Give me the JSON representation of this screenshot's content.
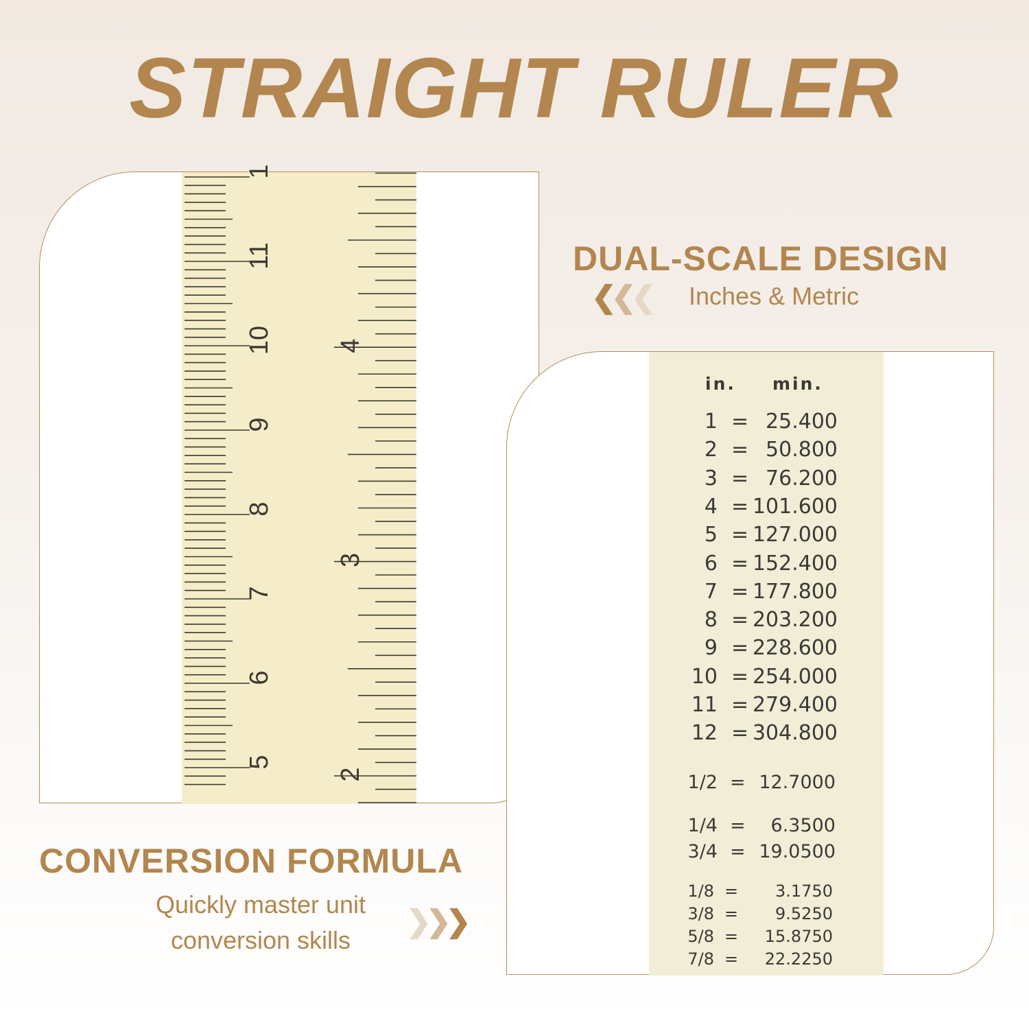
{
  "title": "STRAIGHT RULER",
  "dual_scale": {
    "heading": "DUAL-SCALE DESIGN",
    "subheading": "Inches & Metric",
    "arrow_icon": "chevrons-left-icon"
  },
  "conversion": {
    "heading": "CONVERSION FORMULA",
    "line1": "Quickly master unit",
    "line2": "conversion skills",
    "arrow_icon": "chevrons-right-icon"
  },
  "ruler": {
    "cm_labels": [
      "5",
      "6",
      "7",
      "8",
      "9",
      "10",
      "11",
      "1"
    ],
    "inch_labels": [
      "2",
      "3",
      "4"
    ]
  },
  "table": {
    "col_in": "in.",
    "col_mm": "min.",
    "rows": [
      {
        "in": "1",
        "eq": "=",
        "mm": "25.400"
      },
      {
        "in": "2",
        "eq": "=",
        "mm": "50.800"
      },
      {
        "in": "3",
        "eq": "=",
        "mm": "76.200"
      },
      {
        "in": "4",
        "eq": "=",
        "mm": "101.600"
      },
      {
        "in": "5",
        "eq": "=",
        "mm": "127.000"
      },
      {
        "in": "6",
        "eq": "=",
        "mm": "152.400"
      },
      {
        "in": "7",
        "eq": "=",
        "mm": "177.800"
      },
      {
        "in": "8",
        "eq": "=",
        "mm": "203.200"
      },
      {
        "in": "9",
        "eq": "=",
        "mm": "228.600"
      },
      {
        "in": "10",
        "eq": "=",
        "mm": "254.000"
      },
      {
        "in": "11",
        "eq": "=",
        "mm": "279.400"
      },
      {
        "in": "12",
        "eq": "=",
        "mm": "304.800"
      }
    ],
    "fractions": [
      {
        "in": "1/2",
        "eq": "=",
        "mm": "12.7000"
      },
      {
        "in": "1/4",
        "eq": "=",
        "mm": "6.3500"
      },
      {
        "in": "3/4",
        "eq": "=",
        "mm": "19.0500"
      },
      {
        "in": "1/8",
        "eq": "=",
        "mm": "3.1750"
      },
      {
        "in": "3/8",
        "eq": "=",
        "mm": "9.5250"
      },
      {
        "in": "5/8",
        "eq": "=",
        "mm": "15.8750"
      },
      {
        "in": "7/8",
        "eq": "=",
        "mm": "22.2250"
      }
    ]
  },
  "colors": {
    "accent": "#b2864e",
    "ruler": "#f5ecc9",
    "ink": "#3a3a36"
  }
}
